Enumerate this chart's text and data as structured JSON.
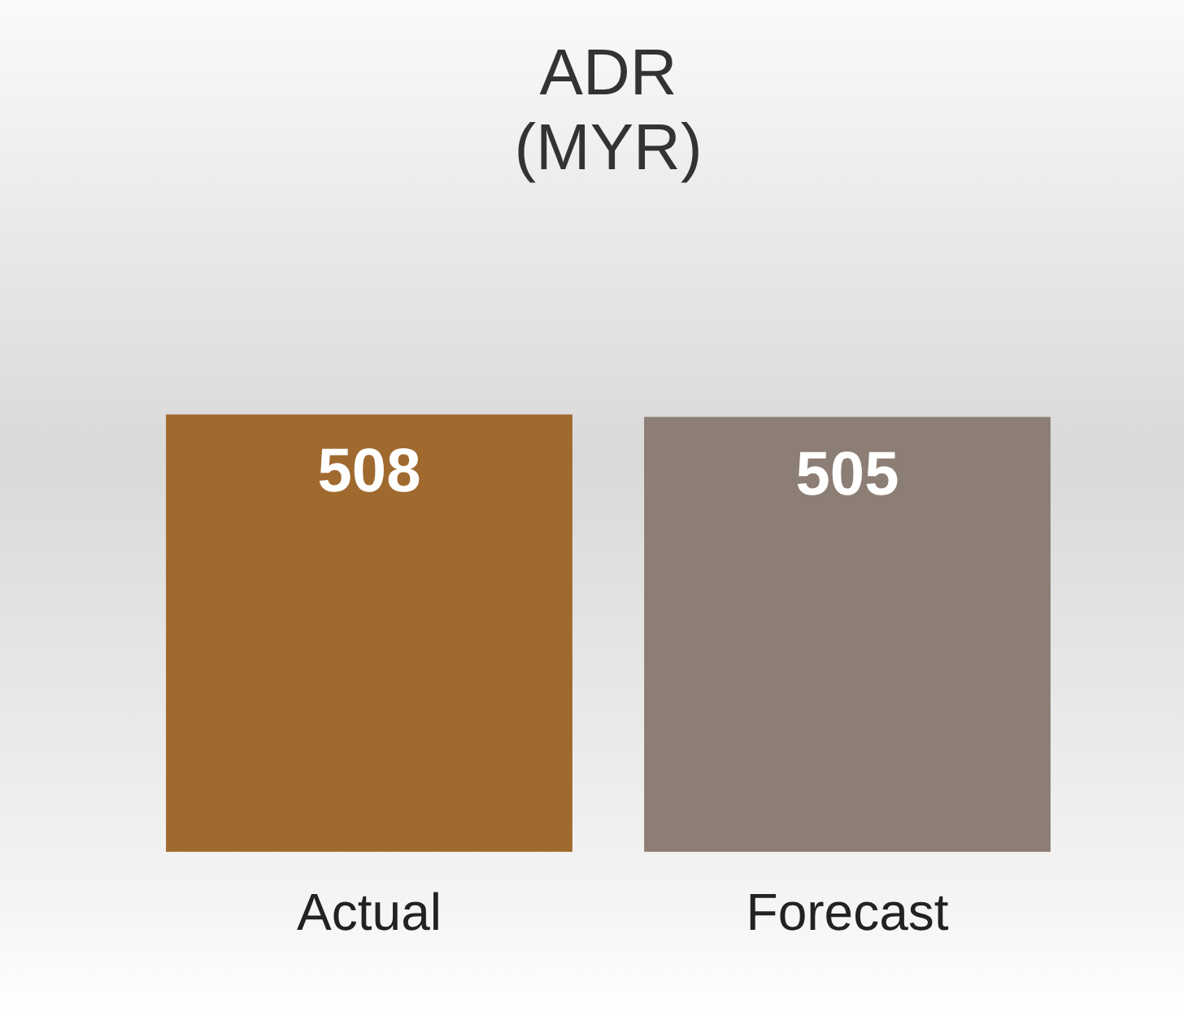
{
  "chart_data": {
    "type": "bar",
    "title": "ADR\n(MYR)",
    "categories": [
      "Actual",
      "Forecast"
    ],
    "values": [
      508,
      505
    ],
    "colors": [
      "#a0692e",
      "#8c7e74"
    ],
    "data_labels": true,
    "grid": false
  }
}
